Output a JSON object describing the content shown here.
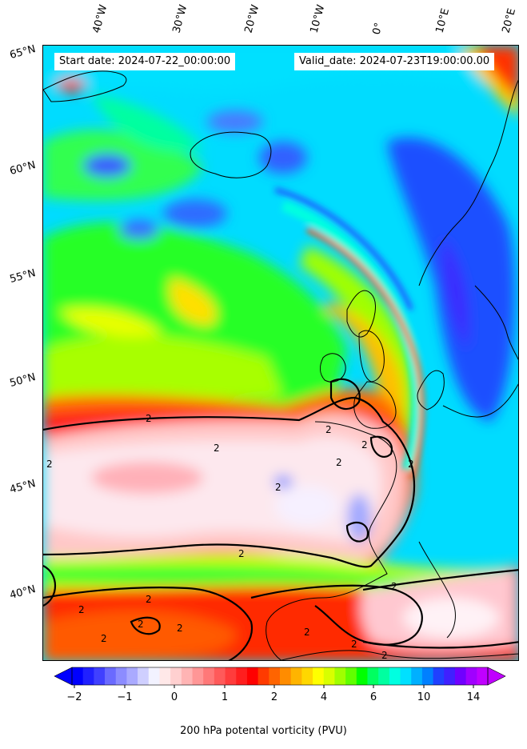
{
  "header": {
    "start_label": "Start date: 2024-07-22_00:00:00",
    "valid_label": "Valid_date: 2024-07-23T19:00:00.00"
  },
  "axes": {
    "lon_labels": [
      "40°W",
      "30°W",
      "20°W",
      "10°W",
      "0°",
      "10°E",
      "20°E"
    ],
    "lat_labels": [
      "65°N",
      "60°N",
      "55°N",
      "50°N",
      "45°N",
      "40°N"
    ]
  },
  "contour_labels": [
    "2",
    "2",
    "2",
    "2",
    "2",
    "2",
    "2",
    "2",
    "2",
    "2",
    "2",
    "2",
    "2",
    "2",
    "2",
    "2",
    "2",
    "2"
  ],
  "colorbar": {
    "title": "200 hPa potental vorticity (PVU)",
    "tick_labels": [
      "−2",
      "−1",
      "0",
      "1",
      "2",
      "4",
      "6",
      "10",
      "14"
    ],
    "colors": [
      "#0000ff",
      "#2020ff",
      "#4040ff",
      "#6a6aff",
      "#8c8cff",
      "#aaaaff",
      "#cfcfff",
      "#f2f2ff",
      "#ffe8e8",
      "#ffd0d0",
      "#ffb4b4",
      "#ff9696",
      "#ff7878",
      "#ff5a5a",
      "#ff3c3c",
      "#ff1e1e",
      "#ff0000",
      "#ff3a00",
      "#ff6400",
      "#ff8c00",
      "#ffb400",
      "#ffd700",
      "#ffff00",
      "#d8ff00",
      "#a0ff00",
      "#60ff00",
      "#00ff00",
      "#00ff60",
      "#00ffa0",
      "#00ffe0",
      "#00e0ff",
      "#00b0ff",
      "#0080ff",
      "#2040ff",
      "#4020ff",
      "#7000ff",
      "#a000ff",
      "#c000ff"
    ]
  },
  "map_colors": {
    "ocean_cyan": "#00d8ff",
    "green": "#22ff22",
    "yellow_green": "#c8ff00",
    "blue": "#2050ff",
    "purple": "#8000ff",
    "orange": "#ff8800",
    "red": "#ff1a1a",
    "pink": "#ffc8c8",
    "white": "#f8f0f4"
  }
}
